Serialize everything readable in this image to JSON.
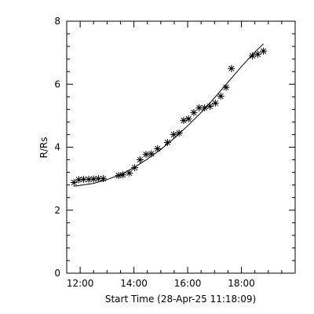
{
  "chart_data": {
    "type": "scatter",
    "xlabel": "Start Time (28-Apr-25 11:18:09)",
    "ylabel": "R/Rs",
    "xlim": [
      11.5,
      20.0
    ],
    "ylim": [
      0,
      8
    ],
    "x_ticks": [
      {
        "value": 12,
        "label": "12:00"
      },
      {
        "value": 14,
        "label": "14:00"
      },
      {
        "value": 16,
        "label": "16:00"
      },
      {
        "value": 18,
        "label": "18:00"
      }
    ],
    "y_ticks": [
      {
        "value": 0,
        "label": "0"
      },
      {
        "value": 2,
        "label": "2"
      },
      {
        "value": 4,
        "label": "4"
      },
      {
        "value": 6,
        "label": "6"
      },
      {
        "value": 8,
        "label": "8"
      }
    ],
    "points": [
      {
        "x": 11.77,
        "y": 2.88
      },
      {
        "x": 11.95,
        "y": 2.97
      },
      {
        "x": 12.13,
        "y": 2.98
      },
      {
        "x": 12.32,
        "y": 2.98
      },
      {
        "x": 12.5,
        "y": 2.99
      },
      {
        "x": 12.68,
        "y": 3.0
      },
      {
        "x": 12.86,
        "y": 3.0
      },
      {
        "x": 13.43,
        "y": 3.1
      },
      {
        "x": 13.59,
        "y": 3.12
      },
      {
        "x": 13.83,
        "y": 3.18
      },
      {
        "x": 14.03,
        "y": 3.35
      },
      {
        "x": 14.23,
        "y": 3.6
      },
      {
        "x": 14.45,
        "y": 3.77
      },
      {
        "x": 14.65,
        "y": 3.79
      },
      {
        "x": 14.88,
        "y": 3.95
      },
      {
        "x": 15.25,
        "y": 4.15
      },
      {
        "x": 15.48,
        "y": 4.4
      },
      {
        "x": 15.68,
        "y": 4.45
      },
      {
        "x": 15.85,
        "y": 4.85
      },
      {
        "x": 16.03,
        "y": 4.9
      },
      {
        "x": 16.23,
        "y": 5.1
      },
      {
        "x": 16.43,
        "y": 5.25
      },
      {
        "x": 16.63,
        "y": 5.25
      },
      {
        "x": 16.83,
        "y": 5.3
      },
      {
        "x": 17.03,
        "y": 5.4
      },
      {
        "x": 17.23,
        "y": 5.62
      },
      {
        "x": 17.43,
        "y": 5.9
      },
      {
        "x": 17.63,
        "y": 6.5
      },
      {
        "x": 18.41,
        "y": 6.9
      },
      {
        "x": 18.61,
        "y": 6.95
      },
      {
        "x": 18.82,
        "y": 7.05
      }
    ],
    "fit_line": [
      {
        "x": 11.77,
        "y": 2.76
      },
      {
        "x": 12.5,
        "y": 2.85
      },
      {
        "x": 13.0,
        "y": 2.97
      },
      {
        "x": 13.5,
        "y": 3.13
      },
      {
        "x": 14.0,
        "y": 3.35
      },
      {
        "x": 14.5,
        "y": 3.62
      },
      {
        "x": 15.0,
        "y": 3.93
      },
      {
        "x": 15.5,
        "y": 4.28
      },
      {
        "x": 16.0,
        "y": 4.68
      },
      {
        "x": 16.5,
        "y": 5.1
      },
      {
        "x": 17.0,
        "y": 5.57
      },
      {
        "x": 17.5,
        "y": 6.06
      },
      {
        "x": 18.0,
        "y": 6.56
      },
      {
        "x": 18.5,
        "y": 7.02
      },
      {
        "x": 18.82,
        "y": 7.28
      }
    ]
  }
}
